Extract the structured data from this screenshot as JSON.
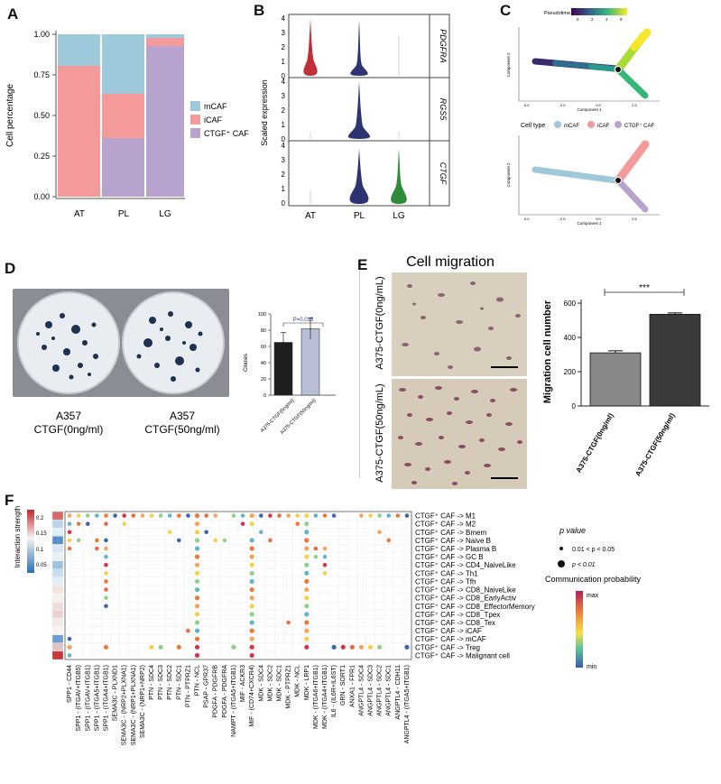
{
  "panels": {
    "a": "A",
    "b": "B",
    "c": "C",
    "d": "D",
    "e": "E",
    "f": "F"
  },
  "panel_a": {
    "ylabel": "Cell percentage",
    "yticks": [
      "0.00",
      "0.25",
      "0.50",
      "0.75",
      "1.00"
    ],
    "legend": [
      "mCAF",
      "iCAF",
      "CTGF⁺ CAF"
    ],
    "colors": {
      "mCAF": "#9ec9da",
      "iCAF": "#f59a9a",
      "CTGF": "#b8a3cf"
    }
  },
  "panel_b": {
    "ylabel": "Scaled expression",
    "genes": [
      "PDGFRA",
      "RGS5",
      "CTGF"
    ],
    "categories": [
      "AT",
      "PL",
      "LG"
    ],
    "yticks": [
      "0",
      "1",
      "2",
      "3",
      "4"
    ],
    "colors": {
      "AT": "#c0303a",
      "PL": "#2e3473",
      "LG": "#2f8a3a"
    }
  },
  "panel_c": {
    "pseudotime_label": "Pseudotime",
    "pseudotime_ticks": [
      "0",
      "2",
      "4",
      "6"
    ],
    "xlabel": "Component 1",
    "ylabel": "Component 2",
    "xticks": [
      "-5.0",
      "-2.5",
      "0.0",
      "2.5"
    ],
    "yticks": [
      "3",
      "2",
      "1",
      "0",
      "-1",
      "-2"
    ],
    "celltype_label": "Cell type",
    "celltype_legend": [
      "mCAF",
      "iCAF",
      "CTGF⁺ CAF"
    ]
  },
  "panel_d": {
    "dish_labels": [
      {
        "line1": "A357",
        "line2": "CTGF(0ng/ml)"
      },
      {
        "line1": "A357",
        "line2": "CTGF(50ng/ml)"
      }
    ],
    "ylabel": "Clonies",
    "pvalue": "P=0.015",
    "yticks": [
      "0",
      "20",
      "40",
      "60",
      "80",
      "100"
    ],
    "categories": [
      "A375-CTGF(0ng/ml)",
      "A375-CTGF(50ng/ml)"
    ],
    "values": [
      65,
      82
    ],
    "errors": [
      12,
      13
    ],
    "bar_colors": [
      "#1e1e1e",
      "#b8bed6"
    ]
  },
  "panel_e": {
    "title": "Cell migration",
    "row_labels": [
      "A375-CTGF(0ng/mL)",
      "A375-CTGF(50ng/mL)"
    ],
    "ylabel": "Migration cell number",
    "significance": "***",
    "yticks": [
      "0",
      "200",
      "400",
      "600"
    ],
    "categories": [
      "A375-CTGF(0ng/ml)",
      "A375-CTGF(50ng/ml)"
    ],
    "values": [
      310,
      535
    ],
    "errors": [
      12,
      8
    ],
    "bar_colors": [
      "#888888",
      "#3a3a3a"
    ]
  },
  "panel_f": {
    "strength_label": "Interaction strength",
    "strength_ticks": [
      "0.2",
      "0.15",
      "0.1",
      "0.05"
    ],
    "pvalue_title": "p value",
    "pvalue_small": "0.01 < p < 0.05",
    "pvalue_big": "p < 0.01",
    "prob_title": "Communication probability",
    "prob_max": "max",
    "prob_min": "min",
    "pairs": [
      "SPP1 - CD44",
      "SPP1 - (ITGAV+ITGB5)",
      "SPP1 - (ITGAV+ITGB1)",
      "SPP1 - (ITGA5+ITGB1)",
      "SPP1 - (ITGA4+ITGB1)",
      "SEMA3C - PLXND1",
      "SEMA3C - (NRP2+PLXNA1)",
      "SEMA3C - (NRP1+PLXNA1)",
      "SEMA3C - (NRP1+NRP2)",
      "PTN - SDC4",
      "PTN - SDC3",
      "PTN - SDC2",
      "PTN - SDC1",
      "PTN - PTPRZ1",
      "PTN - NCL",
      "PSAP - GPR37",
      "PDGFA - PDGFRB",
      "PDGFA - PDGFRA",
      "NAMPT - (ITGA5+ITGB1)",
      "MIF - ACKR3",
      "MIF - (CD74+CXCR4)",
      "MDK - SDC4",
      "MDK - SDC2",
      "MDK - SDC1",
      "MDK - PTPRZ1",
      "MDK - NCL",
      "MDK - LRP1",
      "MDK - (ITGA6+ITGB1)",
      "MDK - (ITGA4+ITGB1)",
      "IL6 - (IL6R+IL6ST)",
      "GRN - SORT1",
      "ANXA1 - FPR1",
      "ANGPTL4 - SDC4",
      "ANGPTL4 - SDC3",
      "ANGPTL4 - SDC2",
      "ANGPTL4 - SDC1",
      "ANGPTL4 - CDH11",
      "ANGPTL4 - (ITGA5+ITGB1)"
    ],
    "targets": [
      "CTGF⁺ CAF -> M1",
      "CTGF⁺ CAF -> M2",
      "CTGF⁺ CAF -> Bmem",
      "CTGF⁺ CAF -> Naive B",
      "CTGF⁺ CAF -> Plasma B",
      "CTGF⁺ CAF -> GC B",
      "CTGF⁺ CAF -> CD4_NaiveLike",
      "CTGF⁺ CAF -> Th1",
      "CTGF⁺ CAF -> Tfh",
      "CTGF⁺ CAF -> CD8_NaiveLike",
      "CTGF⁺ CAF -> CD8_EarlyActiv",
      "CTGF⁺ CAF -> CD8_EffectorMemory",
      "CTGF⁺ CAF -> CD8_Tpex",
      "CTGF⁺ CAF -> CD8_Tex",
      "CTGF⁺ CAF -> iCAF",
      "CTGF⁺ CAF -> mCAF",
      "CTGF⁺ CAF -> Treg",
      "CTGF⁺ CAF -> Malignant cell"
    ]
  }
}
